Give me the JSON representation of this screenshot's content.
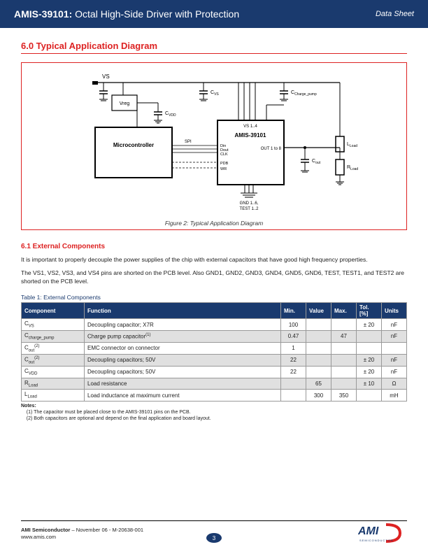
{
  "header": {
    "part": "AMIS-39101:",
    "title": "Octal High-Side Driver with Protection",
    "right": "Data Sheet"
  },
  "section": {
    "title": "6.0 Typical Application Diagram"
  },
  "diagram": {
    "caption": "Figure 2: Typical Application Diagram",
    "labels": {
      "vs": "VS",
      "vreg": "Vreg",
      "cvdd": "C",
      "cvdd_sub": "VDD",
      "cvs": "C",
      "cvs_sub": "VS",
      "cchg": "C",
      "cchg_sub": "Charge_pump",
      "micro": "Microcontroller",
      "spi": "SPI",
      "chip": "AMIS-39101",
      "vs14": "VS 1..4",
      "din": "Din",
      "dout": "Dout",
      "clk": "CLK",
      "pdb": "PDB",
      "wr": "WR",
      "out": "OUT 1 to 8",
      "gnd": "GND 1..6,",
      "test": "TEST 1..2",
      "cout": "C",
      "cout_sub": "out",
      "lload": "L",
      "lload_sub": "Load",
      "rload": "R",
      "rload_sub": "Load"
    }
  },
  "subsection": {
    "title": "6.1 External Components",
    "para1": "It is important to properly decouple the power supplies of the chip with external capacitors that have good high frequency properties.",
    "para2": "The VS1, VS2, VS3, and VS4 pins are shorted on the PCB level. Also GND1, GND2, GND3, GND4, GND5, GND6, TEST, TEST1, and TEST2 are shorted on the PCB level."
  },
  "table": {
    "caption": "Table 1: External Components",
    "headers": [
      "Component",
      "Function",
      "Min.",
      "Value",
      "Max.",
      "Tol. [%]",
      "Units"
    ],
    "rows": [
      {
        "comp": "C",
        "sub": "VS",
        "func": "Decoupling capacitor; X7R",
        "min": "100",
        "val": "",
        "max": "",
        "tol": "± 20",
        "units": "nF"
      },
      {
        "comp": "C",
        "sub": "charge_pump",
        "func": "Charge pump capacitor",
        "sup": "(1)",
        "min": "0.47",
        "val": "",
        "max": "47",
        "tol": "",
        "units": "nF"
      },
      {
        "comp": "C",
        "sub": "out",
        "sup_c": "(2)",
        "func": "EMC connector on connector",
        "min": "1",
        "val": "",
        "max": "",
        "tol": "",
        "units": ""
      },
      {
        "comp": "C",
        "sub": "out",
        "sup_c": "(2)",
        "func": "Decoupling capacitors; 50V",
        "min": "22",
        "val": "",
        "max": "",
        "tol": "± 20",
        "units": "nF"
      },
      {
        "comp": "C",
        "sub": "VDD",
        "func": "Decoupling capacitors; 50V",
        "min": "22",
        "val": "",
        "max": "",
        "tol": "± 20",
        "units": "nF"
      },
      {
        "comp": "R",
        "sub": "Load",
        "func": "Load resistance",
        "min": "",
        "val": "65",
        "max": "",
        "tol": "± 10",
        "units": "Ω"
      },
      {
        "comp": "L",
        "sub": "Load",
        "func": "Load inductance at maximum current",
        "min": "",
        "val": "300",
        "max": "350",
        "tol": "",
        "units": "mH"
      }
    ]
  },
  "notes": {
    "label": "Notes:",
    "n1": "(1)   The capacitor must be placed close to the AMIS-39101 pins on the PCB.",
    "n2": "(2)   Both capacitors are optional and depend on the final application and board layout."
  },
  "footer": {
    "company": "AMI Semiconductor",
    "date": " – November 06 - M-20638-001",
    "url": "www.amis.com",
    "page": "3",
    "logo_main": "AMI",
    "logo_tag": "SEMICONDUCTOR"
  }
}
